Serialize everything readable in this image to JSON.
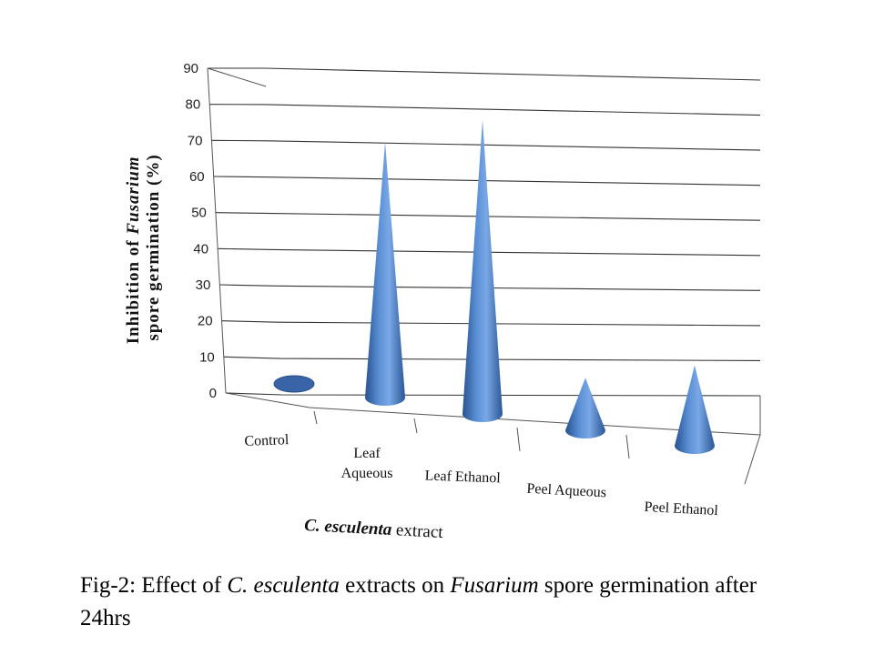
{
  "chart_data": {
    "type": "bar",
    "subtype": "3d-cone",
    "categories": [
      "Control",
      "Leaf Aqueous",
      "Leaf Ethanol",
      "Peel Aqueous",
      "Peel Ethanol"
    ],
    "category_lines": [
      [
        "Control"
      ],
      [
        "Leaf",
        "Aqueous"
      ],
      [
        "Leaf Ethanol"
      ],
      [
        "Peel Aqueous"
      ],
      [
        "Peel Ethanol"
      ]
    ],
    "series": [
      {
        "values": [
          0,
          73,
          84,
          15,
          23
        ]
      }
    ],
    "ylabel_line1_pre": "Inhibition of ",
    "ylabel_line1_em": "Fusarium",
    "ylabel_line2": "spore germination (%)",
    "xlabel_em": "C. esculenta",
    "xlabel_rest": " extract",
    "ylim": [
      0,
      90
    ],
    "yticks": [
      0,
      10,
      20,
      30,
      40,
      50,
      60,
      70,
      80,
      90
    ],
    "grid": true,
    "color": "#4a7cc4"
  },
  "caption": {
    "p1": "Fig-2: Effect of ",
    "e1": "C. esculenta",
    "p2": " extracts on ",
    "e2": "Fusarium",
    "p3": " spore germination after 24hrs"
  }
}
